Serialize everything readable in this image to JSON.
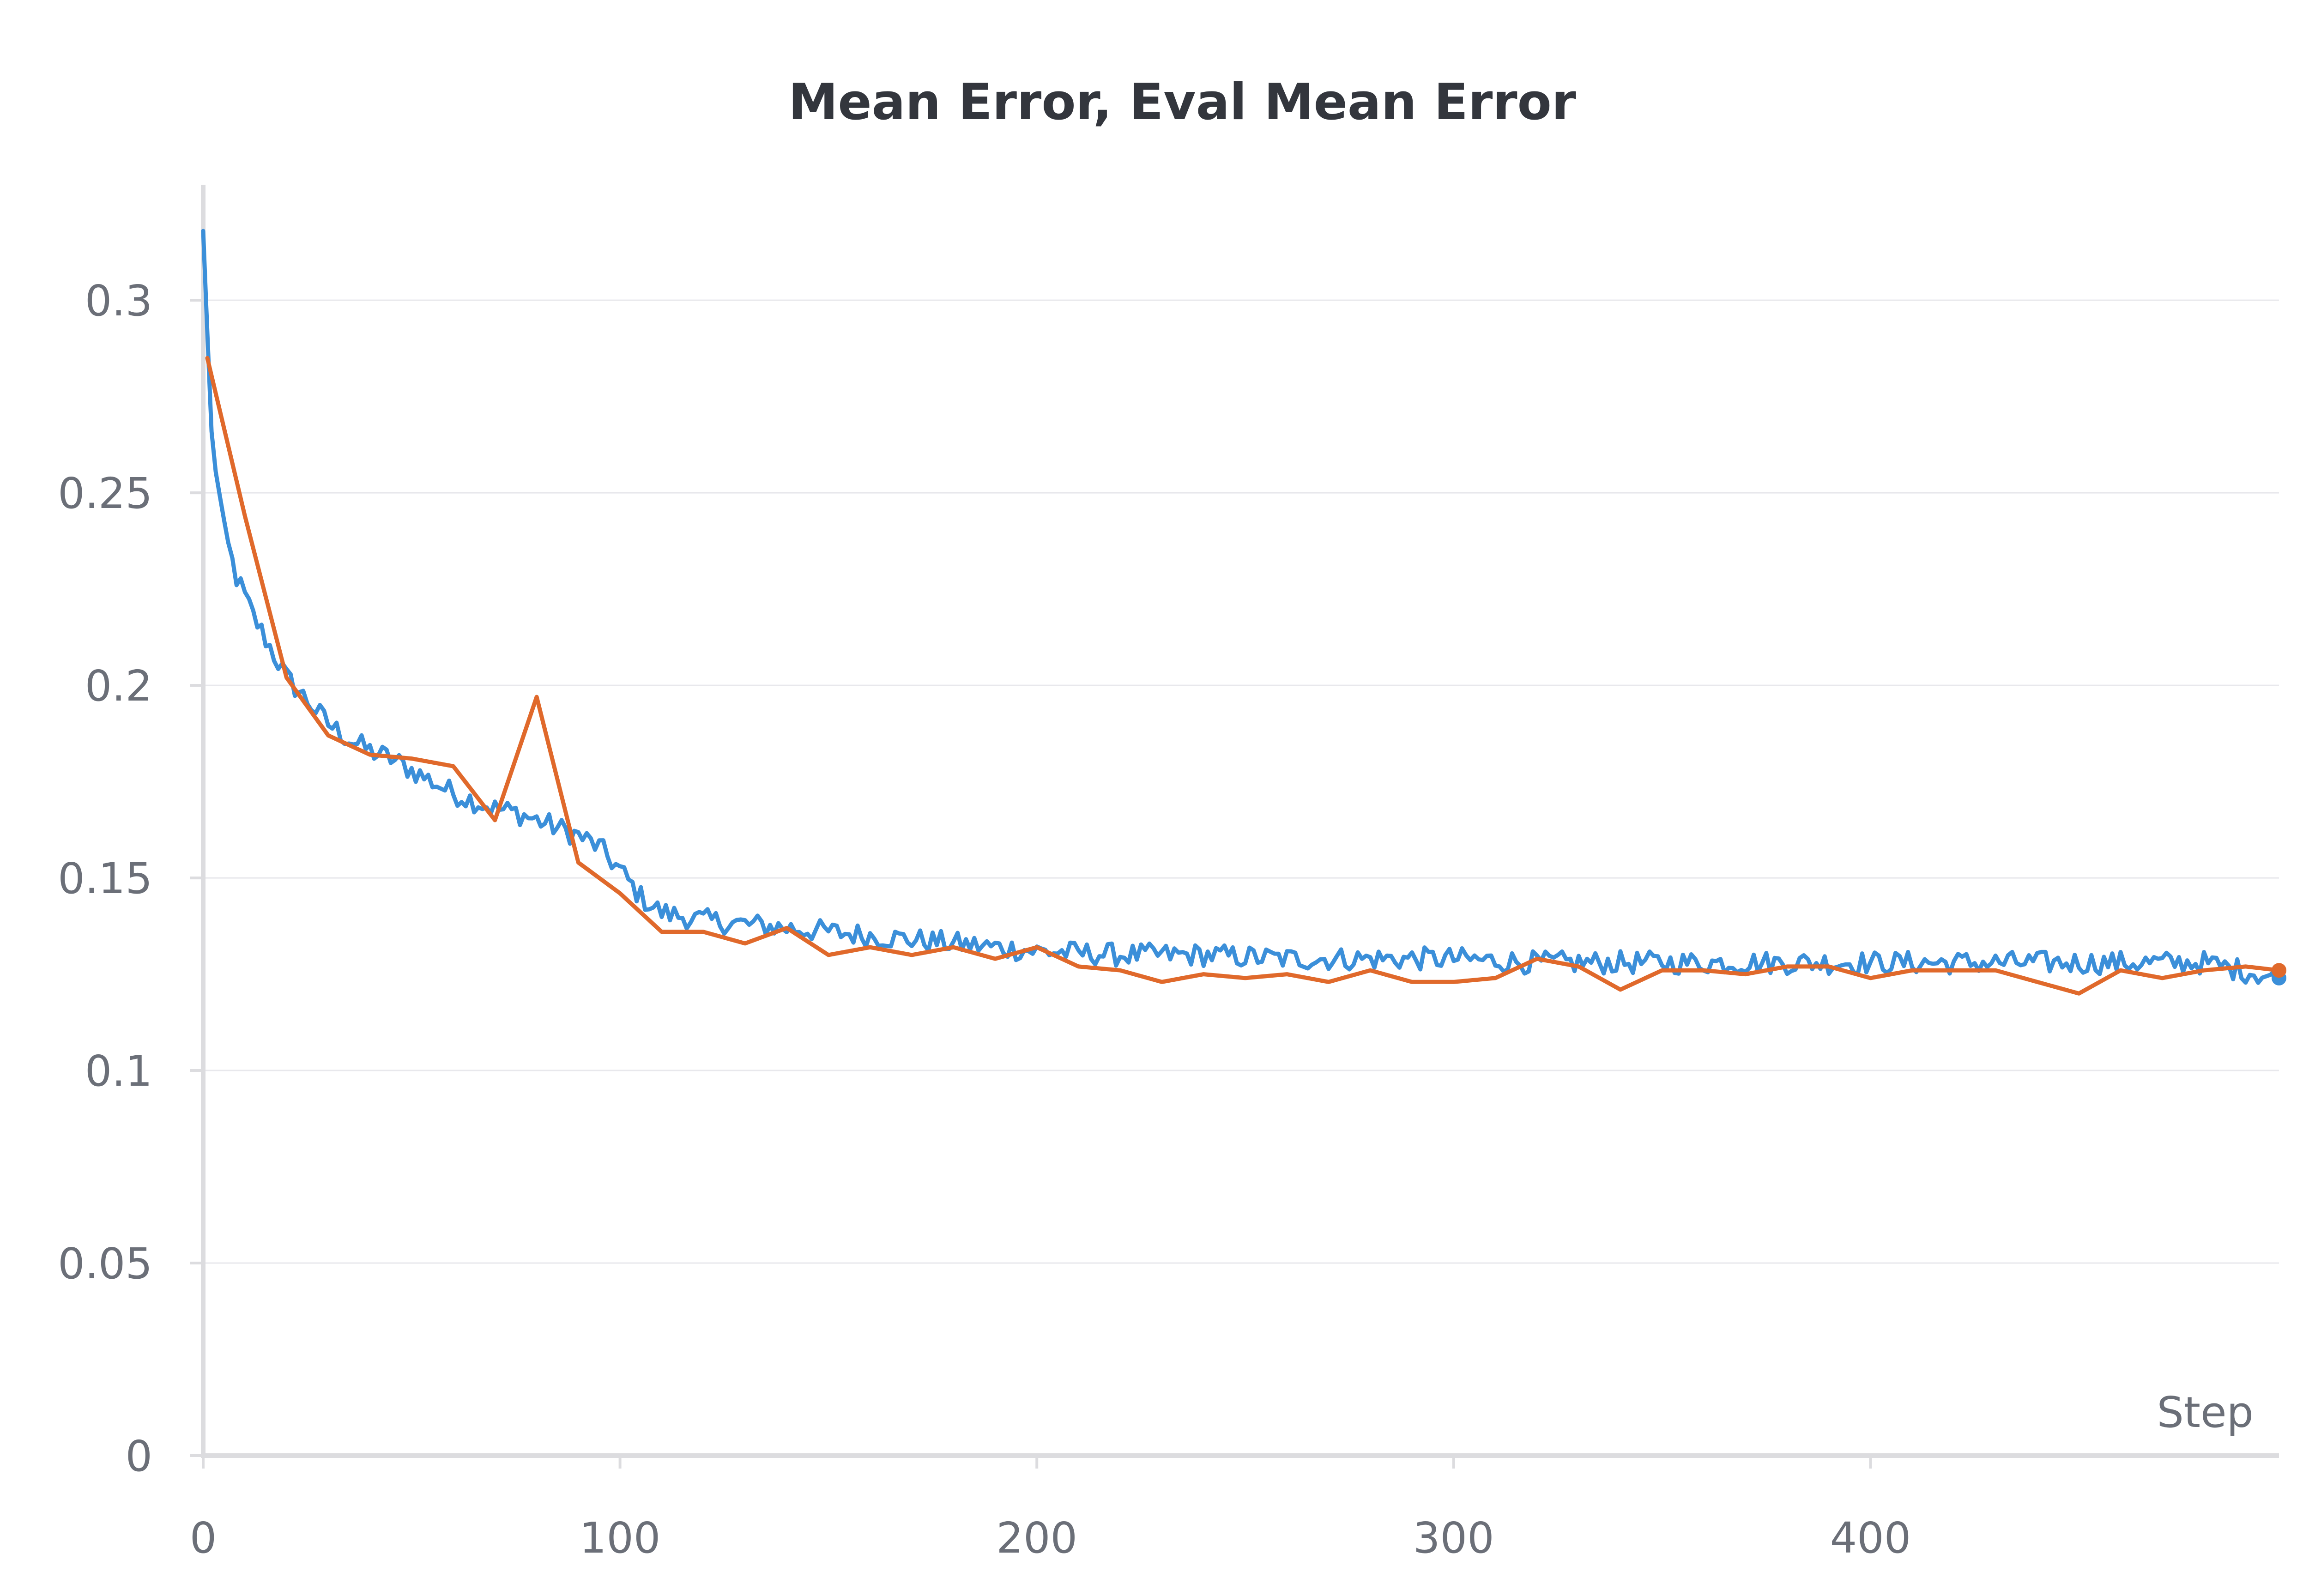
{
  "chart_data": {
    "type": "line",
    "title": "Mean Error, Eval Mean Error",
    "xlabel": "Step",
    "ylabel": "",
    "xlim": [
      0,
      498
    ],
    "ylim": [
      0,
      0.33
    ],
    "x_ticks": [
      0,
      100,
      200,
      300,
      400
    ],
    "y_ticks": [
      0,
      0.05,
      0.1,
      0.15,
      0.2,
      0.25,
      0.3
    ],
    "x_tick_labels": [
      "0",
      "100",
      "200",
      "300",
      "400"
    ],
    "y_tick_labels": [
      "0",
      "0.05",
      "0.1",
      "0.15",
      "0.2",
      "0.25",
      "0.3"
    ],
    "grid": true,
    "legend": "none",
    "series": [
      {
        "color": "#3b8fd9",
        "end_marker": true,
        "noise": 0.003,
        "x": [
          0,
          2,
          5,
          8,
          12,
          16,
          20,
          25,
          30,
          35,
          40,
          45,
          50,
          55,
          60,
          65,
          70,
          75,
          80,
          85,
          90,
          95,
          100,
          105,
          110,
          115,
          120,
          130,
          140,
          150,
          160,
          170,
          180,
          190,
          200,
          220,
          240,
          260,
          280,
          300,
          320,
          340,
          360,
          380,
          400,
          420,
          440,
          460,
          480,
          498
        ],
        "y": [
          0.318,
          0.265,
          0.24,
          0.228,
          0.218,
          0.21,
          0.202,
          0.196,
          0.19,
          0.186,
          0.183,
          0.181,
          0.178,
          0.175,
          0.172,
          0.17,
          0.168,
          0.167,
          0.165,
          0.163,
          0.161,
          0.158,
          0.152,
          0.145,
          0.141,
          0.14,
          0.139,
          0.138,
          0.137,
          0.136,
          0.135,
          0.134,
          0.133,
          0.132,
          0.131,
          0.13,
          0.13,
          0.129,
          0.129,
          0.129,
          0.128,
          0.128,
          0.128,
          0.128,
          0.128,
          0.128,
          0.128,
          0.128,
          0.128,
          0.124
        ]
      },
      {
        "color": "#e0692b",
        "end_marker": true,
        "noise": 0,
        "x": [
          1,
          10,
          20,
          30,
          40,
          50,
          60,
          70,
          80,
          90,
          100,
          110,
          120,
          130,
          140,
          150,
          160,
          170,
          180,
          190,
          200,
          210,
          220,
          230,
          240,
          250,
          260,
          270,
          280,
          290,
          300,
          310,
          320,
          330,
          340,
          350,
          360,
          370,
          380,
          390,
          400,
          410,
          420,
          430,
          440,
          450,
          460,
          470,
          480,
          490,
          498
        ],
        "y": [
          0.285,
          0.244,
          0.202,
          0.187,
          0.182,
          0.181,
          0.179,
          0.165,
          0.197,
          0.154,
          0.146,
          0.136,
          0.136,
          0.133,
          0.137,
          0.13,
          0.132,
          0.13,
          0.132,
          0.129,
          0.132,
          0.127,
          0.126,
          0.123,
          0.125,
          0.124,
          0.125,
          0.123,
          0.126,
          0.123,
          0.123,
          0.124,
          0.129,
          0.127,
          0.121,
          0.126,
          0.126,
          0.125,
          0.127,
          0.127,
          0.124,
          0.126,
          0.126,
          0.126,
          0.123,
          0.12,
          0.126,
          0.124,
          0.126,
          0.127,
          0.126
        ]
      }
    ]
  }
}
